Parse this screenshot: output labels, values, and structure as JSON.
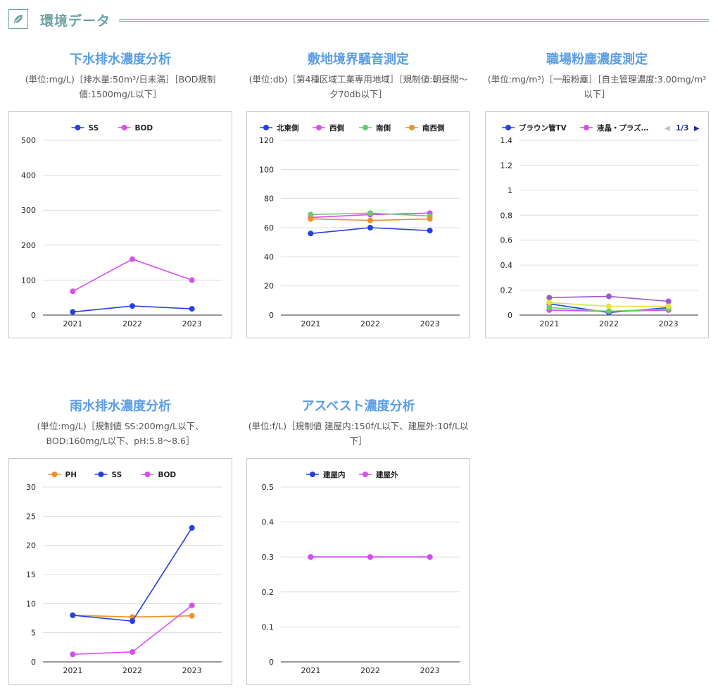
{
  "header": {
    "title": "環境データ"
  },
  "panels": [
    {
      "title": "下水排水濃度分析",
      "subtitle": "(単位:mg/L)［排水量:50m³/日未満］［BOD規制値:1500mg/L以下］",
      "chart_data": {
        "type": "line",
        "categories": [
          "2021",
          "2022",
          "2023"
        ],
        "ylim": [
          0,
          500
        ],
        "yticks": [
          0,
          100,
          200,
          300,
          400,
          500
        ],
        "series": [
          {
            "name": "SS",
            "color": "#2340e8",
            "values": [
              9,
              26,
              18
            ]
          },
          {
            "name": "BOD",
            "color": "#d64ef0",
            "values": [
              68,
              160,
              100
            ]
          }
        ]
      }
    },
    {
      "title": "敷地境界騒音測定",
      "subtitle": "(単位:db)［第4種区域工業専用地域］［規制値:朝昼間〜夕70db以下］",
      "chart_data": {
        "type": "line",
        "categories": [
          "2021",
          "2022",
          "2023"
        ],
        "ylim": [
          0,
          120
        ],
        "yticks": [
          0,
          20,
          40,
          60,
          80,
          100,
          120
        ],
        "series": [
          {
            "name": "北東側",
            "color": "#2340e8",
            "values": [
              56,
              60,
              58
            ]
          },
          {
            "name": "西側",
            "color": "#d64ef0",
            "values": [
              67,
              69,
              70
            ]
          },
          {
            "name": "南側",
            "color": "#6cc96c",
            "values": [
              69,
              70,
              68
            ]
          },
          {
            "name": "南西側",
            "color": "#ee8f2a",
            "values": [
              66,
              65,
              66
            ]
          }
        ]
      }
    },
    {
      "title": "職場粉塵濃度測定",
      "subtitle": "(単位:mg/m³)［一般粉塵］［自主管理濃度:3.00mg/m³以下］",
      "legend_pager": {
        "prev": "◀",
        "page": "1/3",
        "next": "▶"
      },
      "chart_data": {
        "type": "line",
        "categories": [
          "2021",
          "2022",
          "2023"
        ],
        "ylim": [
          0,
          1.4
        ],
        "yticks": [
          0,
          0.2,
          0.4,
          0.6,
          0.8,
          1,
          1.2,
          1.4
        ],
        "series": [
          {
            "name": "ブラウン管TV",
            "color": "#2340e8",
            "values": [
              0.09,
              0.02,
              0.06
            ]
          },
          {
            "name": "液晶・プラズ…",
            "color": "#d64ef0",
            "values": [
              0.04,
              0.03,
              0.04
            ]
          },
          {
            "color": "#9b59d6",
            "values": [
              0.14,
              0.15,
              0.11
            ],
            "hidden_in_legend": true
          },
          {
            "color": "#6cc96c",
            "values": [
              0.06,
              0.03,
              0.05
            ],
            "hidden_in_legend": true
          },
          {
            "color": "#e6e04a",
            "values": [
              0.1,
              0.07,
              0.07
            ],
            "hidden_in_legend": true
          }
        ]
      }
    },
    {
      "title": "雨水排水濃度分析",
      "subtitle": "(単位:mg/L)［規制値 SS:200mg/L以下、BOD:160mg/L以下、pH:5.8〜8.6］",
      "chart_data": {
        "type": "line",
        "categories": [
          "2021",
          "2022",
          "2023"
        ],
        "ylim": [
          0,
          30
        ],
        "yticks": [
          0,
          5,
          10,
          15,
          20,
          25,
          30
        ],
        "series": [
          {
            "name": "PH",
            "color": "#ee8f2a",
            "values": [
              8.0,
              7.7,
              7.9
            ]
          },
          {
            "name": "SS",
            "color": "#2340e8",
            "values": [
              8.0,
              7.0,
              23.0
            ]
          },
          {
            "name": "BOD",
            "color": "#d64ef0",
            "values": [
              1.3,
              1.7,
              9.7
            ]
          }
        ]
      }
    },
    {
      "title": "アスベスト濃度分析",
      "subtitle": "(単位:f/L)［規制値 建屋内:150f/L以下、建屋外:10f/L以下］",
      "chart_data": {
        "type": "line",
        "categories": [
          "2021",
          "2022",
          "2023"
        ],
        "ylim": [
          0,
          0.5
        ],
        "yticks": [
          0,
          0.1,
          0.2,
          0.3,
          0.4,
          0.5
        ],
        "series": [
          {
            "name": "建屋内",
            "color": "#2340e8",
            "values": [
              0.3,
              0.3,
              0.3
            ]
          },
          {
            "name": "建屋外",
            "color": "#d64ef0",
            "values": [
              0.3,
              0.3,
              0.3
            ]
          }
        ]
      }
    }
  ]
}
